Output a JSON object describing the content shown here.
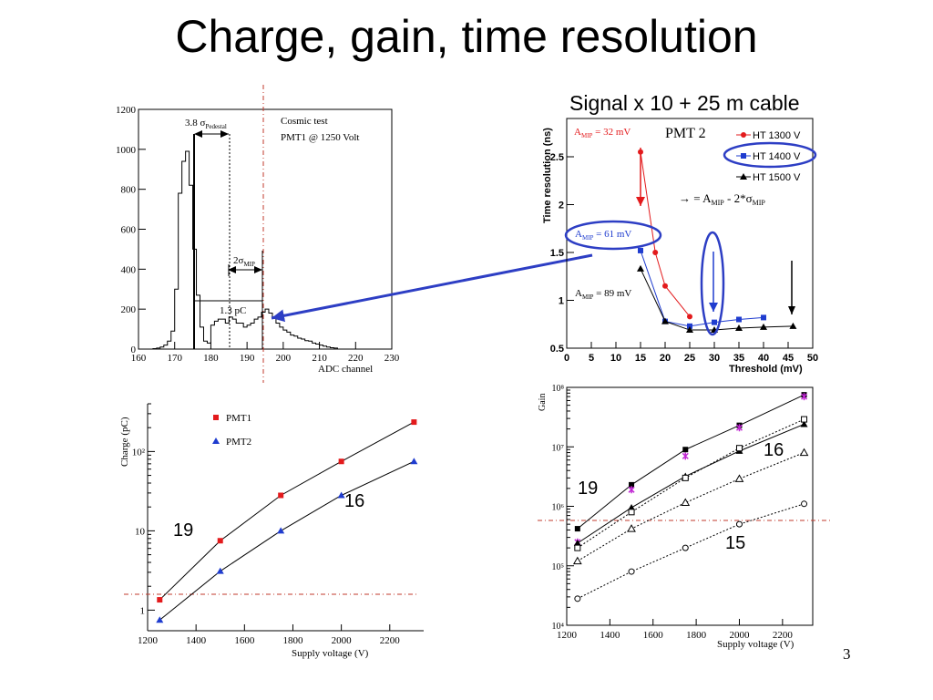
{
  "slide": {
    "title": "Charge, gain, time resolution",
    "signal_caption": "Signal x 10 + 25 m cable",
    "page_number": "3"
  },
  "colors": {
    "red": "#e31a1c",
    "blue": "#1f3ccf",
    "black": "#000000",
    "arrow_blue": "#2d3ec4",
    "dashdot_red": "#c0392b"
  },
  "chart_data": [
    {
      "id": "adc",
      "type": "histogram",
      "xlabel": "ADC channel",
      "ylabel": "",
      "xlim": [
        160,
        230
      ],
      "ylim": [
        0,
        1200
      ],
      "xticks": [
        "160",
        "170",
        "180",
        "190",
        "200",
        "210",
        "220",
        "230"
      ],
      "yticks": [
        "0",
        "200",
        "400",
        "600",
        "800",
        "1000",
        "1200"
      ],
      "annotations": {
        "info_line1": "Cosmic test",
        "info_line2": "PMT1 @ 1250 Volt",
        "sigma_ped_prefix": "3.8 σ",
        "sigma_ped_sub": "Pedestal",
        "sigma_mip_prefix": "2σ",
        "sigma_mip_sub": "MIP",
        "charge_label": "1.3 pC"
      },
      "bins": {
        "start": 164,
        "width": 1,
        "counts": [
          2,
          5,
          10,
          20,
          40,
          90,
          300,
          780,
          940,
          990,
          820,
          500,
          270,
          110,
          40,
          30,
          120,
          140,
          150,
          150,
          130,
          160,
          150,
          130,
          130,
          110,
          120,
          130,
          150,
          160,
          185,
          200,
          180,
          160,
          130,
          110,
          95,
          85,
          70,
          65,
          55,
          50,
          42,
          40,
          30,
          25,
          20,
          15,
          10,
          7,
          5
        ]
      }
    },
    {
      "id": "timeres",
      "type": "line",
      "title": "PMT 2",
      "xlabel": "Threshold (mV)",
      "ylabel": "Time resolution (ns)",
      "xlim": [
        0,
        50
      ],
      "ylim": [
        0.5,
        2.9
      ],
      "xticks": [
        "0",
        "5",
        "10",
        "15",
        "20",
        "25",
        "30",
        "35",
        "40",
        "45",
        "50"
      ],
      "yticks": [
        "0.5",
        "1",
        "1.5",
        "2",
        "2.5"
      ],
      "legend": [
        "HT 1300 V",
        "HT 1400 V",
        "HT 1500 V"
      ],
      "annotations": {
        "amip32_prefix": "A",
        "amip32_sub": "MIP",
        "amip32_value": " = 32 mV",
        "amip61_prefix": "A",
        "amip61_sub": "MIP",
        "amip61_value": " = 61 mV",
        "amip89_prefix": "A",
        "amip89_sub": "MIP",
        "amip89_value": " = 89 mV",
        "formula_arrow": "→ = A",
        "formula_sub1": "MIP",
        "formula_mid": " - 2*σ",
        "formula_sub2": "MIP"
      },
      "series": [
        {
          "name": "HT 1300 V",
          "x": [
            15,
            18,
            20,
            25
          ],
          "y": [
            2.55,
            1.5,
            1.15,
            0.83
          ]
        },
        {
          "name": "HT 1400 V",
          "x": [
            15,
            20,
            25,
            30,
            35,
            40
          ],
          "y": [
            1.52,
            0.78,
            0.73,
            0.77,
            0.8,
            0.82
          ]
        },
        {
          "name": "HT 1500 V",
          "x": [
            15,
            20,
            25,
            30,
            35,
            40,
            46
          ],
          "y": [
            1.33,
            0.78,
            0.69,
            0.69,
            0.71,
            0.72,
            0.73
          ]
        }
      ]
    },
    {
      "id": "charge",
      "type": "line",
      "xlabel": "Supply voltage (V)",
      "ylabel": "Charge (pC)",
      "yscale": "log",
      "xlim": [
        1200,
        2340
      ],
      "ylim": [
        0.55,
        400
      ],
      "xticks": [
        "1200",
        "1400",
        "1600",
        "1800",
        "2000",
        "2200"
      ],
      "yticks": [
        "1",
        "10",
        "10²"
      ],
      "legend": [
        "PMT1",
        "PMT2"
      ],
      "annotations": {
        "label19": "19",
        "label16": "16"
      },
      "series": [
        {
          "name": "PMT1",
          "x": [
            1250,
            1500,
            1750,
            2000,
            2300
          ],
          "y": [
            1.35,
            7.5,
            28,
            75,
            235
          ]
        },
        {
          "name": "PMT2",
          "x": [
            1250,
            1500,
            1750,
            2000,
            2300
          ],
          "y": [
            0.75,
            3.1,
            10,
            28,
            75
          ]
        }
      ]
    },
    {
      "id": "gain",
      "type": "line",
      "xlabel": "Supply voltage (V)",
      "ylabel": "Gain",
      "yscale": "log",
      "xlim": [
        1200,
        2340
      ],
      "ylim": [
        10000,
        100000000
      ],
      "xticks": [
        "1200",
        "1400",
        "1600",
        "1800",
        "2000",
        "2200"
      ],
      "yticks": [
        "10⁴",
        "10⁵",
        "10⁶",
        "10⁷",
        "10⁸"
      ],
      "annotations": {
        "label19": "19",
        "label16": "16",
        "label15": "15"
      },
      "series": [
        {
          "x": [
            1250,
            1500,
            1750,
            2000,
            2300
          ],
          "y": [
            420000,
            2300000,
            9000000,
            23000000,
            75000000
          ]
        },
        {
          "x": [
            1250,
            1500,
            1750,
            2000,
            2300
          ],
          "y": [
            250000,
            1900000,
            7000000,
            21000000,
            70000000
          ]
        },
        {
          "x": [
            1250,
            1500,
            1750,
            2000,
            2300
          ],
          "y": [
            240000,
            950000,
            3200000,
            8500000,
            24000000
          ]
        },
        {
          "x": [
            1250,
            1500,
            1750,
            2000,
            2300
          ],
          "y": [
            200000,
            800000,
            3000000,
            9500000,
            29000000
          ]
        },
        {
          "x": [
            1250,
            1500,
            1750,
            2000,
            2300
          ],
          "y": [
            120000,
            420000,
            1150000,
            2900000,
            8000000
          ]
        },
        {
          "x": [
            1250,
            1500,
            1750,
            2000,
            2300
          ],
          "y": [
            28000,
            80000,
            200000,
            500000,
            1100000
          ]
        }
      ]
    }
  ]
}
